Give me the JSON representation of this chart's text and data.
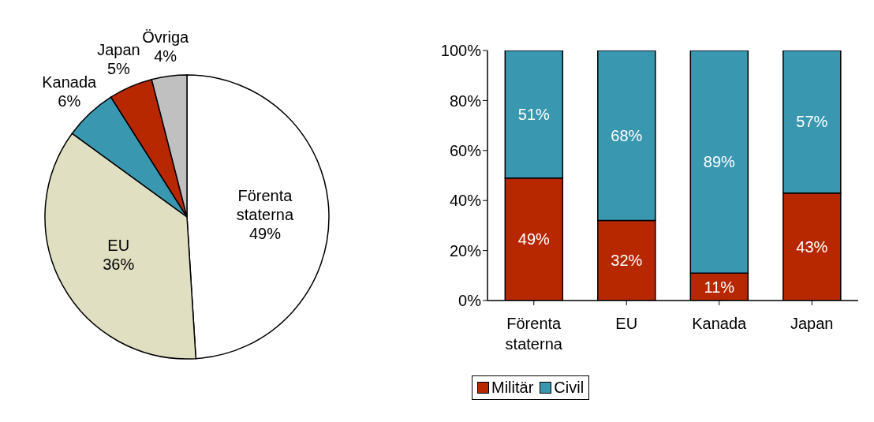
{
  "chart_data": [
    {
      "type": "pie",
      "categories": [
        "Förenta staterna",
        "EU",
        "Kanada",
        "Japan",
        "Övriga"
      ],
      "values": [
        49,
        36,
        6,
        5,
        4
      ],
      "colors": [
        "#ffffff",
        "#e1dfc1",
        "#3a97b0",
        "#b82800",
        "#c0c0c0"
      ],
      "value_labels": [
        "49%",
        "36%",
        "6%",
        "5%",
        "4%"
      ]
    },
    {
      "type": "bar",
      "categories": [
        "Förenta staterna",
        "EU",
        "Kanada",
        "Japan"
      ],
      "stacked": true,
      "ylim": [
        0,
        100
      ],
      "yticks": [
        {
          "value": 0,
          "label": "0%"
        },
        {
          "value": 20,
          "label": "20%"
        },
        {
          "value": 40,
          "label": "40%"
        },
        {
          "value": 60,
          "label": "60%"
        },
        {
          "value": 80,
          "label": "80%"
        },
        {
          "value": 100,
          "label": "100%"
        }
      ],
      "legend": "bottom",
      "series": [
        {
          "name": "Militär",
          "color": "#b82800",
          "values": [
            49,
            32,
            11,
            43
          ],
          "value_labels": [
            "49%",
            "32%",
            "11%",
            "43%"
          ]
        },
        {
          "name": "Civil",
          "color": "#3a97b0",
          "values": [
            51,
            68,
            89,
            57
          ],
          "value_labels": [
            "51%",
            "68%",
            "89%",
            "57%"
          ]
        }
      ]
    }
  ]
}
